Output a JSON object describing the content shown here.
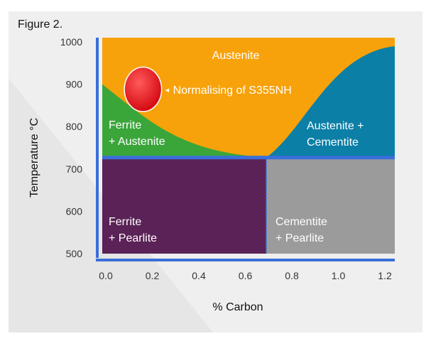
{
  "figure_label": "Figure 2.",
  "colors": {
    "panel_bg": "#efefef",
    "austenite": "#f7a20a",
    "ferrite_austenite": "#3aa63a",
    "austenite_cementite": "#0b7fa6",
    "ferrite_pearlite": "#5a2256",
    "cementite_pearlite": "#9b9b9b",
    "axis_blue": "#3a6fd8",
    "marker_red": "#e3141c",
    "text_dark": "#333333"
  },
  "regions": {
    "austenite": "Austenite",
    "ferrite_austenite": [
      "Ferrite",
      "+ Austenite"
    ],
    "austenite_cementite": [
      "Austenite +",
      "Cementite"
    ],
    "ferrite_pearlite": [
      "Ferrite",
      "+ Pearlite"
    ],
    "cementite_pearlite": [
      "Cementite",
      "+ Pearlite"
    ]
  },
  "annotation": {
    "label": "Normalising of S355NH",
    "arrow_glyph": "◂",
    "marker_carbon": 0.16,
    "marker_temperature": 888,
    "marker_carbon_span": [
      0.07,
      0.23
    ],
    "marker_temperature_span": [
      835,
      940
    ]
  },
  "axes": {
    "x_label": "% Carbon",
    "y_label": "Temperature °C",
    "x_ticks": [
      "0.0",
      "0.2",
      "0.4",
      "0.6",
      "0.8",
      "1.0",
      "1.2"
    ],
    "y_ticks": [
      "1000",
      "900",
      "800",
      "700",
      "600",
      "500"
    ],
    "x_range": [
      0.0,
      1.23
    ],
    "y_range": [
      500,
      1010
    ]
  },
  "phase_boundaries": {
    "eutectoid_carbon": 0.69,
    "eutectoid_temperature": 727,
    "a3_line": [
      [
        0.0,
        900
      ],
      [
        0.69,
        727
      ]
    ],
    "acm_line": [
      [
        0.69,
        727
      ],
      [
        1.23,
        990
      ]
    ]
  }
}
